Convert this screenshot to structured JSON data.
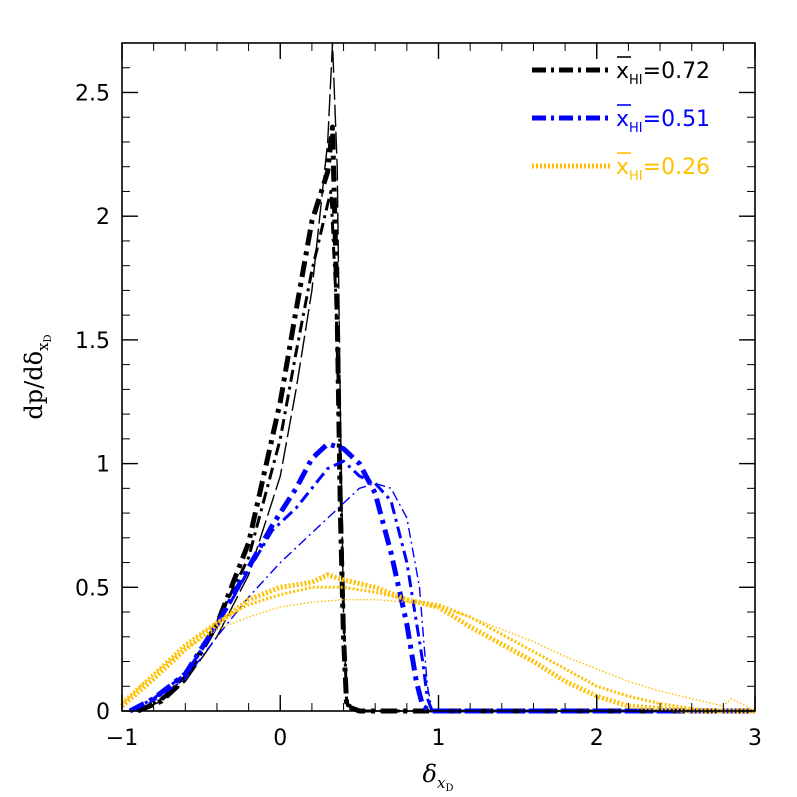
{
  "chart_data": {
    "type": "line",
    "xlabel": "δ",
    "xlabel_sub": "x",
    "xlabel_subsub": "D",
    "ylabel": "dp/dδ",
    "ylabel_sub": "x",
    "ylabel_subsub": "D",
    "xlim": [
      -1,
      3
    ],
    "ylim": [
      0,
      2.7
    ],
    "xticks": [
      -1,
      0,
      1,
      2,
      3
    ],
    "xtick_labels": [
      "−1",
      "0",
      "1",
      "2",
      "3"
    ],
    "yticks": [
      0,
      0.5,
      1,
      1.5,
      2,
      2.5
    ],
    "ytick_labels": [
      "0",
      "0.5",
      "1",
      "1.5",
      "2",
      "2.5"
    ],
    "legend_position": "top-right",
    "grid": false,
    "legend": [
      {
        "label_prefix": "x",
        "label_sub": "HI",
        "label_value": "=0.72",
        "color": "#000000",
        "style": "dash-dot"
      },
      {
        "label_prefix": "x",
        "label_sub": "HI",
        "label_value": "=0.51",
        "color": "#0000ff",
        "style": "dash-dot"
      },
      {
        "label_prefix": "x",
        "label_sub": "HI",
        "label_value": "=0.26",
        "color": "#ffc000",
        "style": "dotted"
      }
    ],
    "series": [
      {
        "group": 0,
        "color": "#000000",
        "style": "dashdot",
        "weight": "thick",
        "x": [
          -0.9,
          -0.75,
          -0.6,
          -0.4,
          -0.2,
          0,
          0.1,
          0.2,
          0.3,
          0.33,
          0.36,
          0.38,
          0.4,
          0.42,
          0.5,
          1,
          2,
          3
        ],
        "y": [
          0,
          0.04,
          0.13,
          0.35,
          0.68,
          1.25,
          1.62,
          1.98,
          2.18,
          2.36,
          1.6,
          0.8,
          0.3,
          0.02,
          0,
          0,
          0,
          0
        ]
      },
      {
        "group": 0,
        "color": "#000000",
        "style": "dashdot",
        "weight": "medium",
        "x": [
          -0.9,
          -0.75,
          -0.6,
          -0.4,
          -0.2,
          0,
          0.1,
          0.2,
          0.3,
          0.32,
          0.35,
          0.38,
          0.4,
          0.42,
          0.5,
          1,
          2,
          3
        ],
        "y": [
          0,
          0.05,
          0.14,
          0.36,
          0.62,
          1.1,
          1.45,
          1.78,
          2.05,
          2.1,
          1.7,
          1.0,
          0.4,
          0.03,
          0,
          0,
          0,
          0
        ]
      },
      {
        "group": 0,
        "color": "#000000",
        "style": "dash",
        "weight": "thin",
        "x": [
          -0.9,
          -0.75,
          -0.6,
          -0.4,
          -0.2,
          0,
          0.1,
          0.2,
          0.3,
          0.33,
          0.36,
          0.38,
          0.4,
          0.42,
          0.5,
          1,
          2,
          3
        ],
        "y": [
          0,
          0.04,
          0.12,
          0.3,
          0.55,
          0.95,
          1.3,
          1.7,
          2.3,
          2.7,
          2.2,
          1.2,
          0.4,
          0.02,
          0,
          0,
          0,
          0
        ]
      },
      {
        "group": 1,
        "color": "#0000ff",
        "style": "dashdot",
        "weight": "thick",
        "x": [
          -0.95,
          -0.8,
          -0.6,
          -0.4,
          -0.2,
          -0.05,
          0.1,
          0.2,
          0.3,
          0.4,
          0.5,
          0.6,
          0.7,
          0.8,
          0.86,
          0.9,
          0.95,
          1,
          2,
          3
        ],
        "y": [
          0,
          0.05,
          0.15,
          0.35,
          0.58,
          0.75,
          0.9,
          1.02,
          1.08,
          1.06,
          1.0,
          0.88,
          0.64,
          0.35,
          0.12,
          0.02,
          0,
          0,
          0,
          0
        ]
      },
      {
        "group": 1,
        "color": "#0000ff",
        "style": "dashdot",
        "weight": "medium",
        "x": [
          -0.95,
          -0.8,
          -0.6,
          -0.4,
          -0.2,
          -0.05,
          0.1,
          0.2,
          0.3,
          0.4,
          0.5,
          0.6,
          0.7,
          0.8,
          0.9,
          0.93,
          0.96,
          1,
          2,
          3
        ],
        "y": [
          0,
          0.05,
          0.15,
          0.34,
          0.57,
          0.73,
          0.82,
          0.9,
          0.98,
          1.01,
          0.95,
          0.92,
          0.85,
          0.6,
          0.2,
          0.05,
          0,
          0,
          0,
          0
        ]
      },
      {
        "group": 1,
        "color": "#0000ff",
        "style": "dashdot",
        "weight": "thin",
        "x": [
          -0.95,
          -0.8,
          -0.6,
          -0.4,
          -0.2,
          0,
          0.2,
          0.4,
          0.5,
          0.6,
          0.7,
          0.8,
          0.88,
          0.93,
          0.96,
          1,
          2,
          3
        ],
        "y": [
          0,
          0.04,
          0.13,
          0.3,
          0.46,
          0.6,
          0.72,
          0.84,
          0.9,
          0.92,
          0.9,
          0.78,
          0.5,
          0.1,
          0,
          0,
          0,
          0
        ]
      },
      {
        "group": 2,
        "color": "#ffc000",
        "style": "dotted",
        "weight": "thick",
        "x": [
          -1,
          -0.8,
          -0.6,
          -0.4,
          -0.2,
          0,
          0.2,
          0.3,
          0.4,
          0.6,
          0.8,
          1,
          1.2,
          1.4,
          1.6,
          1.8,
          2,
          2.2,
          2.4,
          2.6,
          2.8,
          3
        ],
        "y": [
          0.02,
          0.13,
          0.25,
          0.35,
          0.45,
          0.5,
          0.52,
          0.55,
          0.53,
          0.5,
          0.45,
          0.42,
          0.34,
          0.27,
          0.2,
          0.12,
          0.06,
          0.02,
          0.01,
          0,
          0,
          0
        ]
      },
      {
        "group": 2,
        "color": "#ffc000",
        "style": "dotted",
        "weight": "medium",
        "x": [
          -1,
          -0.8,
          -0.6,
          -0.4,
          -0.2,
          0,
          0.2,
          0.4,
          0.6,
          0.8,
          1,
          1.2,
          1.4,
          1.6,
          1.8,
          2,
          2.2,
          2.4,
          2.6,
          2.8,
          3
        ],
        "y": [
          0.03,
          0.15,
          0.27,
          0.36,
          0.43,
          0.47,
          0.5,
          0.5,
          0.48,
          0.45,
          0.43,
          0.38,
          0.31,
          0.24,
          0.17,
          0.1,
          0.06,
          0.03,
          0.01,
          0,
          0
        ]
      },
      {
        "group": 2,
        "color": "#ffc000",
        "style": "dotted",
        "weight": "thin",
        "x": [
          -1,
          -0.8,
          -0.6,
          -0.4,
          -0.2,
          0,
          0.2,
          0.4,
          0.6,
          0.8,
          1,
          1.2,
          1.4,
          1.6,
          1.8,
          2,
          2.2,
          2.4,
          2.6,
          2.8,
          2.85,
          3
        ],
        "y": [
          0.04,
          0.15,
          0.25,
          0.33,
          0.38,
          0.42,
          0.44,
          0.45,
          0.45,
          0.44,
          0.42,
          0.38,
          0.33,
          0.28,
          0.22,
          0.17,
          0.12,
          0.08,
          0.05,
          0.02,
          0.05,
          0
        ]
      }
    ]
  }
}
